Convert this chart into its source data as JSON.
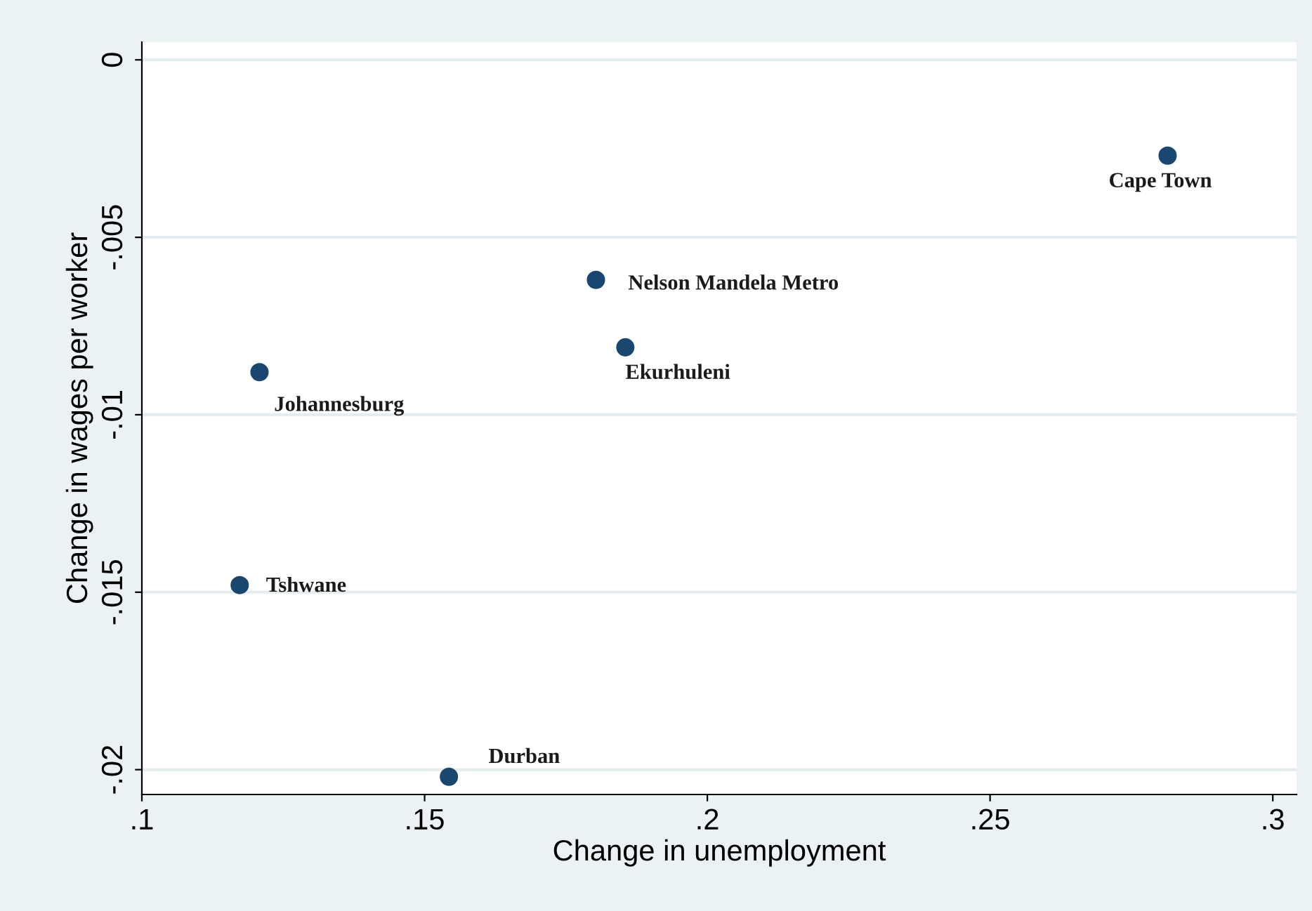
{
  "chart_data": {
    "type": "scatter",
    "xlabel": "Change in unemployment",
    "ylabel": "Change in wages per worker",
    "x": [
      0.2814,
      0.1803,
      0.1855,
      0.1208,
      0.1173,
      0.1543
    ],
    "values": [
      -0.0027,
      -0.0062,
      -0.0081,
      -0.0088,
      -0.0148,
      -0.0202
    ],
    "color": "#1a476f",
    "marker": "circle",
    "grid": "y",
    "xlim": [
      0.1,
      0.3042
    ],
    "ylim": [
      -0.0207,
      0.0005
    ],
    "xticks": [
      {
        "value": 0.1,
        "label": ".1"
      },
      {
        "value": 0.15,
        "label": ".15"
      },
      {
        "value": 0.2,
        "label": ".2"
      },
      {
        "value": 0.25,
        "label": ".25"
      },
      {
        "value": 0.3,
        "label": ".3"
      }
    ],
    "yticks": [
      {
        "value": 0,
        "label": "0"
      },
      {
        "value": -0.005,
        "label": "-.005"
      },
      {
        "value": -0.01,
        "label": "-.01"
      },
      {
        "value": -0.015,
        "label": "-.015"
      },
      {
        "value": -0.02,
        "label": "-.02"
      }
    ],
    "annotations": [
      {
        "text": "Cape Town",
        "x": 0.2814,
        "y": -0.0027
      },
      {
        "text": "Nelson Mandela Metro",
        "x": 0.1803,
        "y": -0.0062
      },
      {
        "text": "Ekurhuleni",
        "x": 0.1855,
        "y": -0.0081
      },
      {
        "text": "Johannesburg",
        "x": 0.1208,
        "y": -0.0088
      },
      {
        "text": "Tshwane",
        "x": 0.1173,
        "y": -0.0148
      },
      {
        "text": "Durban",
        "x": 0.1543,
        "y": -0.0202
      }
    ]
  }
}
